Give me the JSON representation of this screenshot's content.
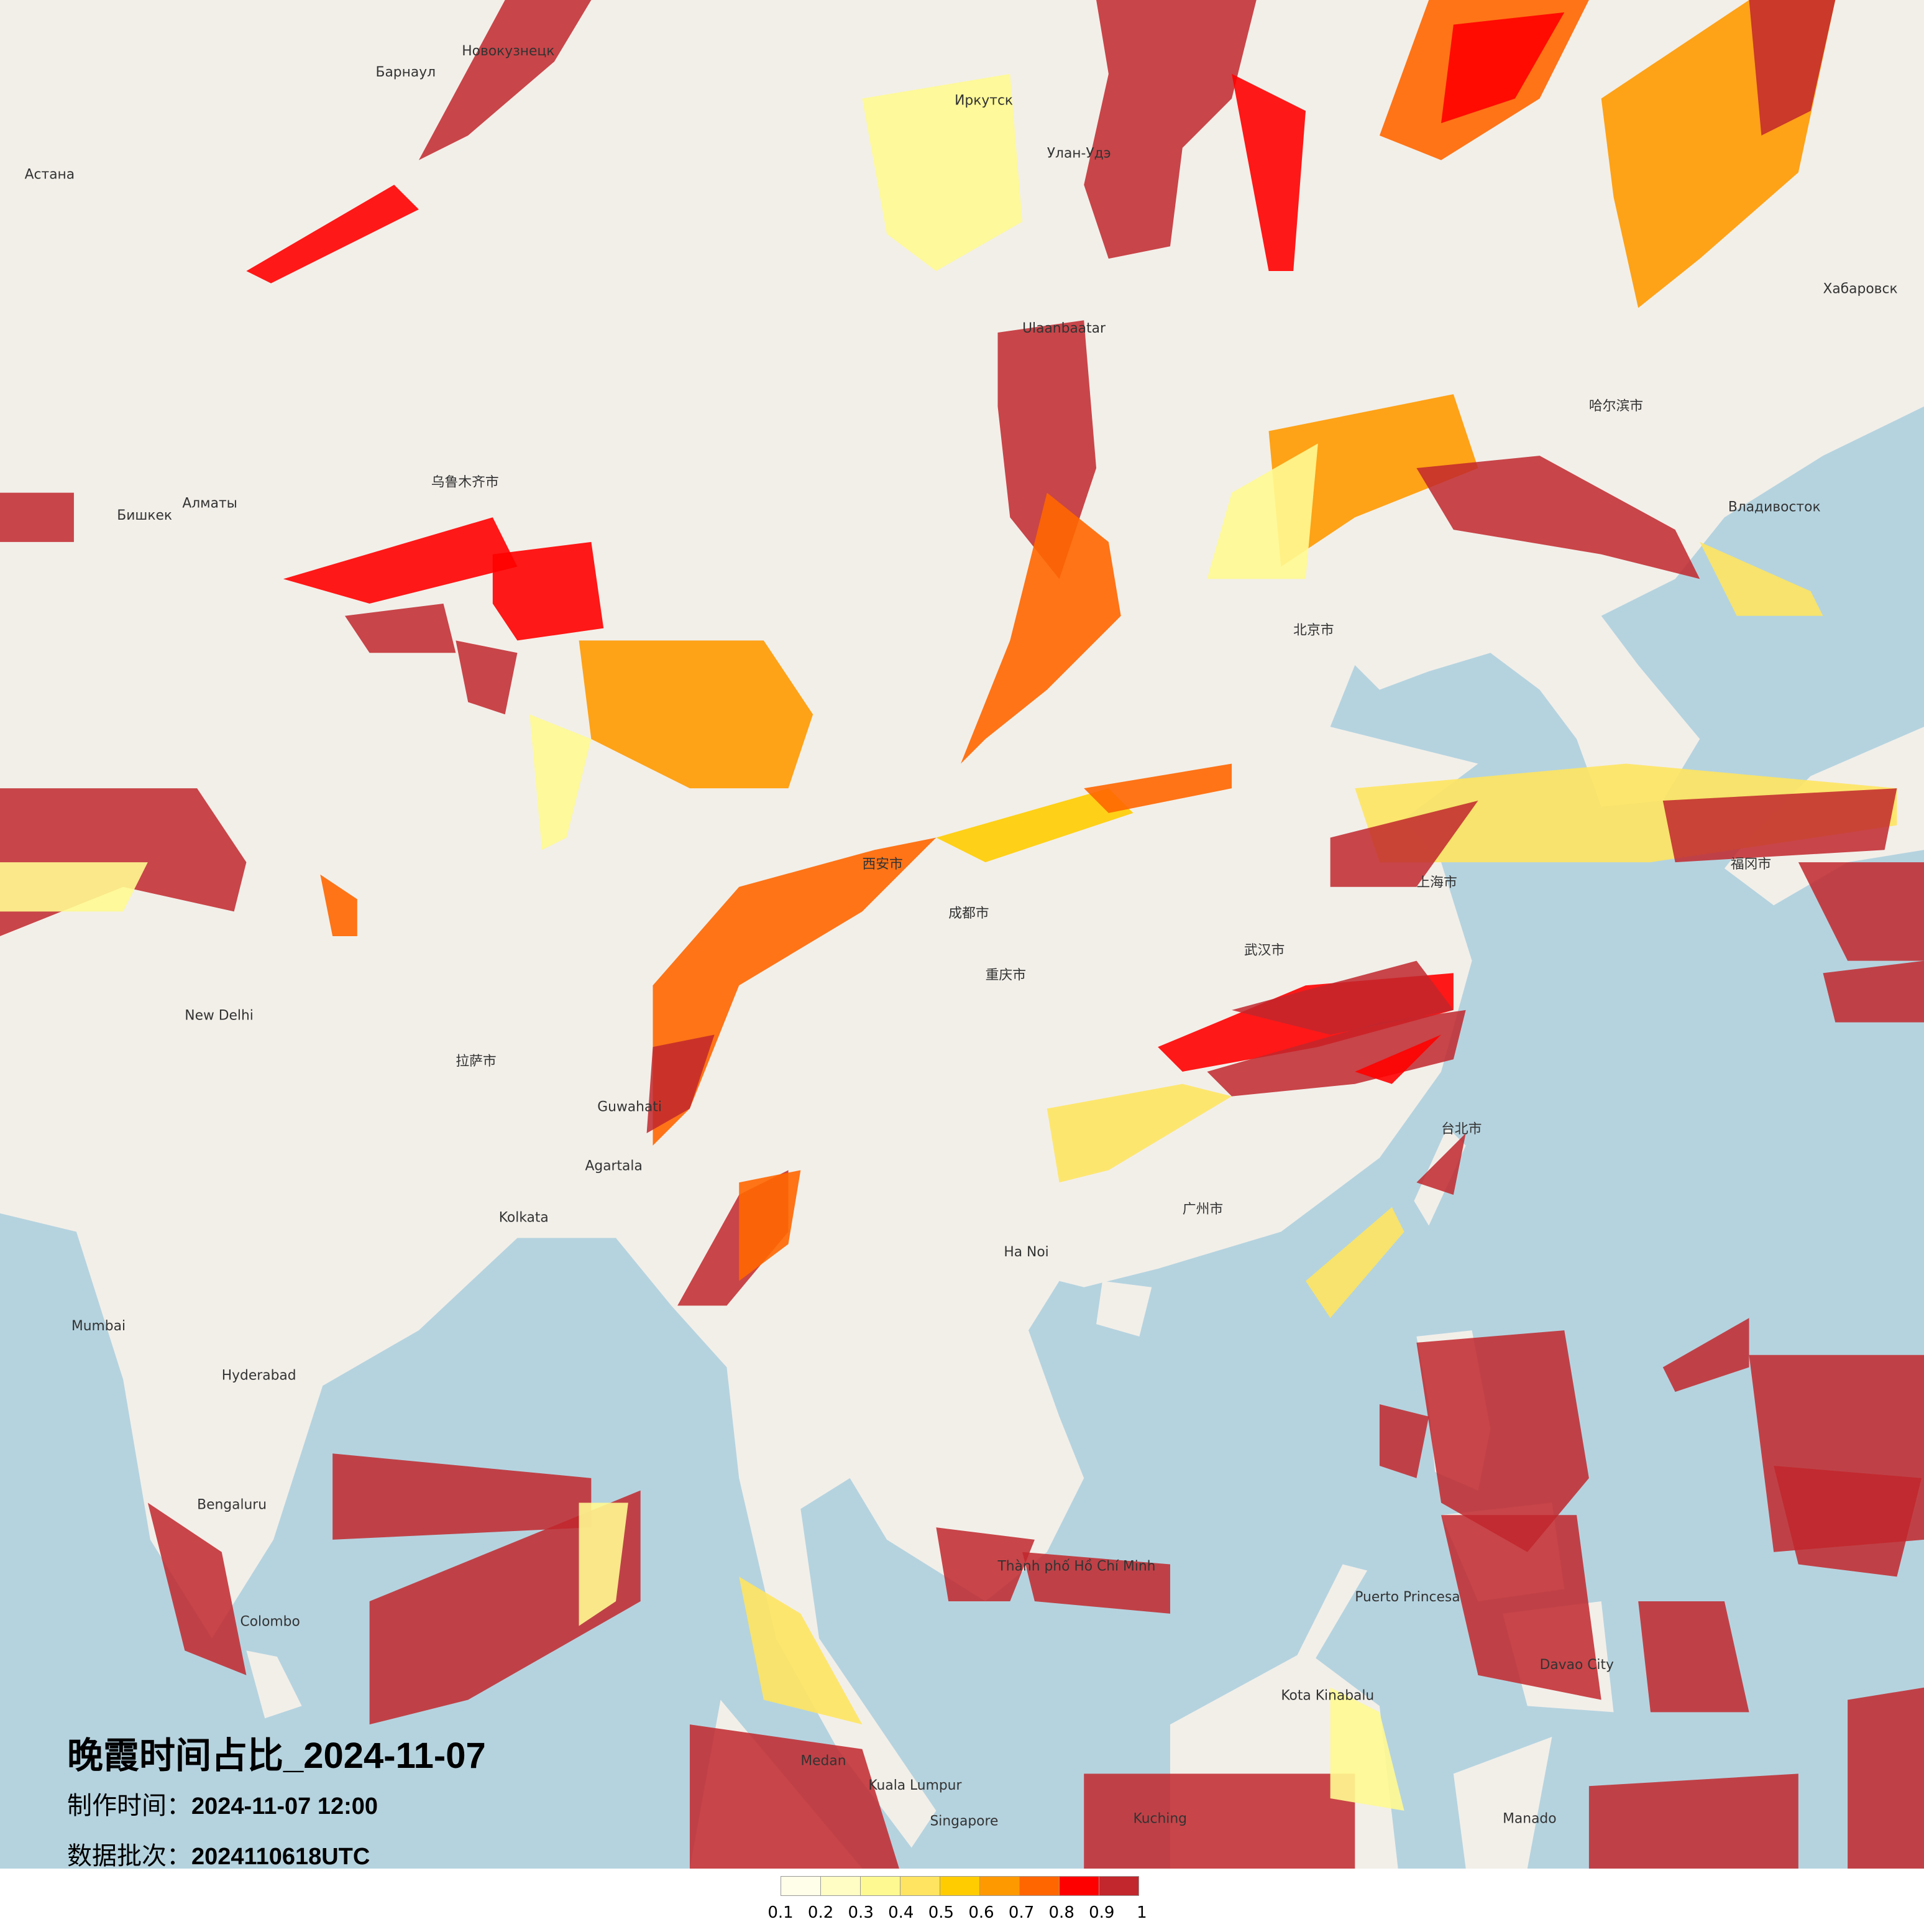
{
  "title": "晚霞时间占比_2024-11-07",
  "made_time": {
    "label": "制作时间：",
    "value": "2024-11-07 12:00"
  },
  "data_batch": {
    "label": "数据批次：",
    "value": "2024110618UTC"
  },
  "legend": {
    "ticks": [
      "0.1",
      "0.2",
      "0.3",
      "0.4",
      "0.5",
      "0.6",
      "0.7",
      "0.8",
      "0.9",
      "1"
    ],
    "colors": [
      "#FFFEE8",
      "#FFFCC4",
      "#FFF991",
      "#FEE460",
      "#FFCC00",
      "#FF9900",
      "#FF6600",
      "#FF0000",
      "#C1272D"
    ]
  },
  "map": {
    "land_color": "#F2EFE9",
    "sea_color": "#B5D3DF",
    "labels": [
      "Астана",
      "Алматы",
      "Бишкек",
      "Барнаул",
      "Новокузнецк",
      "Иркутск",
      "Улан-Удэ",
      "Хабаровск",
      "Владивосток",
      "Ulaanbaatar",
      "北京市",
      "上海市",
      "武汉市",
      "广州市",
      "成都市",
      "重庆市",
      "西安市",
      "拉萨市",
      "乌鲁木齐市",
      "哈尔滨市",
      "New Delhi",
      "Kolkata",
      "Mumbai",
      "Hyderabad",
      "Bengaluru",
      "Ha Noi",
      "Thành phố Hồ Chí Minh",
      "Kuala Lumpur",
      "Singapore",
      "Medan",
      "Kuching",
      "Kota Kinabalu",
      "Manado",
      "Puerto Princesa",
      "Davao City",
      "台北市",
      "福冈市",
      "Colombo",
      "Guwahati",
      "Agartala"
    ]
  }
}
